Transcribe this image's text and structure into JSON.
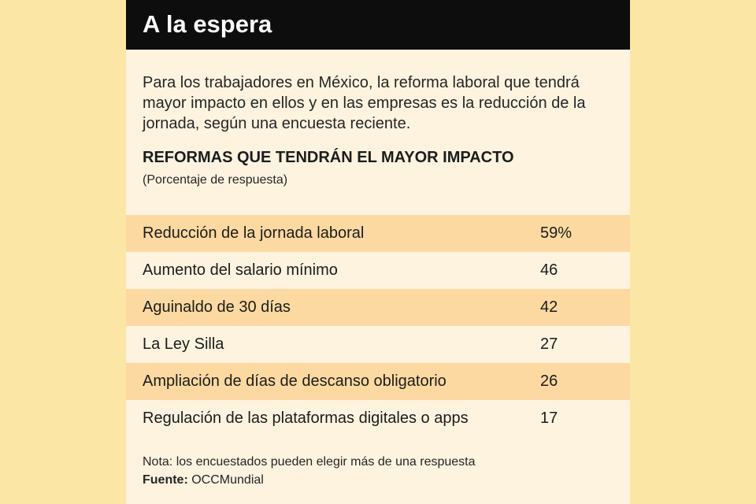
{
  "header": {
    "title": "A la espera"
  },
  "intro": "Para los trabajadores en México, la reforma laboral que tendrá mayor impacto en ellos y en las empresas es la reducción de la jornada, según una encuesta reciente.",
  "chart_data": {
    "type": "table",
    "title": "REFORMAS QUE TENDRÁN EL MAYOR IMPACTO",
    "subtitle": "(Porcentaje de respuesta)",
    "categories": [
      "Reducción de la jornada laboral",
      "Aumento del salario mínimo",
      "Aguinaldo de 30 días",
      "La Ley Silla",
      "Ampliación de días de descanso obligatorio",
      "Regulación de las plataformas digitales o apps"
    ],
    "values": [
      59,
      46,
      42,
      27,
      26,
      17
    ],
    "value_labels": [
      "59%",
      "46",
      "42",
      "27",
      "26",
      "17"
    ]
  },
  "footer": {
    "note": "Nota: los encuestados pueden elegir más de una respuesta",
    "source_label": "Fuente:",
    "source_value": "OCCMundial"
  },
  "colors": {
    "page_background": "#fbe6a6",
    "card_background": "#fdf3df",
    "title_bar": "#0d0d0d",
    "row_shade": "#fbd9a1"
  }
}
